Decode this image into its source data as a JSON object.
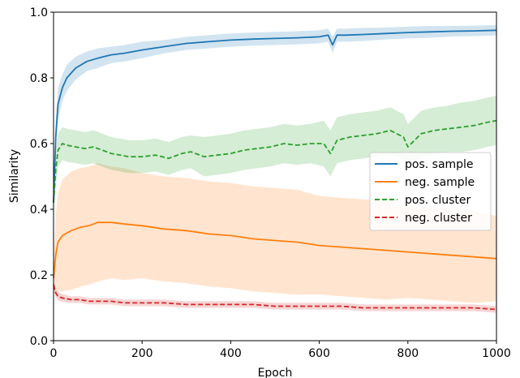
{
  "chart_data": {
    "type": "line",
    "title": "",
    "xlabel": "Epoch",
    "ylabel": "Similarity",
    "xlim": [
      0,
      1000
    ],
    "ylim": [
      0.0,
      1.0
    ],
    "x_ticks": [
      0,
      200,
      400,
      600,
      800,
      1000
    ],
    "x_tick_labels": [
      "0",
      "200",
      "400",
      "600",
      "800",
      "1000"
    ],
    "y_ticks": [
      0.0,
      0.2,
      0.4,
      0.6,
      0.8,
      1.0
    ],
    "y_tick_labels": [
      "0.0",
      "0.2",
      "0.4",
      "0.6",
      "0.8",
      "1.0"
    ],
    "grid": false,
    "legend_position": "center-right",
    "series": [
      {
        "name": "pos. sample",
        "color": "#1f77b4",
        "style": "solid",
        "x": [
          0,
          5,
          10,
          20,
          30,
          50,
          75,
          100,
          130,
          160,
          200,
          250,
          300,
          350,
          400,
          450,
          500,
          550,
          600,
          620,
          630,
          640,
          660,
          700,
          750,
          800,
          850,
          900,
          950,
          1000
        ],
        "y": [
          0.42,
          0.62,
          0.72,
          0.77,
          0.8,
          0.83,
          0.85,
          0.86,
          0.87,
          0.875,
          0.885,
          0.895,
          0.905,
          0.91,
          0.915,
          0.918,
          0.92,
          0.922,
          0.925,
          0.93,
          0.9,
          0.93,
          0.93,
          0.932,
          0.935,
          0.938,
          0.94,
          0.942,
          0.943,
          0.945
        ],
        "band": [
          0.02,
          0.05,
          0.05,
          0.04,
          0.04,
          0.035,
          0.03,
          0.03,
          0.025,
          0.025,
          0.025,
          0.02,
          0.02,
          0.02,
          0.02,
          0.02,
          0.02,
          0.02,
          0.02,
          0.02,
          0.025,
          0.02,
          0.02,
          0.02,
          0.018,
          0.018,
          0.018,
          0.016,
          0.016,
          0.016
        ]
      },
      {
        "name": "neg. sample",
        "color": "#ff7f0e",
        "style": "solid",
        "x": [
          0,
          5,
          10,
          20,
          40,
          60,
          80,
          100,
          130,
          160,
          200,
          250,
          300,
          350,
          400,
          450,
          500,
          550,
          600,
          650,
          700,
          750,
          800,
          850,
          900,
          950,
          1000
        ],
        "y": [
          0.19,
          0.26,
          0.3,
          0.32,
          0.335,
          0.345,
          0.35,
          0.36,
          0.36,
          0.355,
          0.35,
          0.34,
          0.335,
          0.325,
          0.32,
          0.31,
          0.305,
          0.3,
          0.29,
          0.285,
          0.28,
          0.275,
          0.27,
          0.265,
          0.26,
          0.255,
          0.25
        ],
        "band": [
          0.03,
          0.12,
          0.15,
          0.17,
          0.18,
          0.18,
          0.18,
          0.18,
          0.17,
          0.17,
          0.16,
          0.16,
          0.16,
          0.16,
          0.16,
          0.16,
          0.16,
          0.16,
          0.15,
          0.15,
          0.15,
          0.15,
          0.14,
          0.14,
          0.14,
          0.14,
          0.13
        ]
      },
      {
        "name": "pos. cluster",
        "color": "#2ca02c",
        "style": "dashed",
        "x": [
          0,
          5,
          10,
          20,
          30,
          50,
          70,
          90,
          110,
          130,
          150,
          170,
          200,
          230,
          260,
          290,
          310,
          340,
          370,
          400,
          430,
          460,
          490,
          520,
          550,
          580,
          610,
          625,
          640,
          670,
          700,
          730,
          760,
          790,
          800,
          830,
          860,
          890,
          920,
          950,
          980,
          1000
        ],
        "y": [
          0.42,
          0.52,
          0.58,
          0.6,
          0.595,
          0.59,
          0.585,
          0.59,
          0.58,
          0.57,
          0.565,
          0.56,
          0.56,
          0.565,
          0.555,
          0.57,
          0.575,
          0.56,
          0.565,
          0.57,
          0.58,
          0.585,
          0.59,
          0.6,
          0.595,
          0.6,
          0.6,
          0.57,
          0.61,
          0.62,
          0.625,
          0.63,
          0.64,
          0.62,
          0.59,
          0.63,
          0.64,
          0.645,
          0.65,
          0.655,
          0.665,
          0.67
        ],
        "band": [
          0.02,
          0.05,
          0.05,
          0.05,
          0.05,
          0.05,
          0.05,
          0.05,
          0.05,
          0.05,
          0.05,
          0.05,
          0.05,
          0.05,
          0.05,
          0.05,
          0.05,
          0.06,
          0.06,
          0.06,
          0.06,
          0.06,
          0.06,
          0.06,
          0.06,
          0.06,
          0.07,
          0.07,
          0.07,
          0.07,
          0.07,
          0.07,
          0.07,
          0.07,
          0.07,
          0.07,
          0.07,
          0.07,
          0.075,
          0.075,
          0.075,
          0.075
        ]
      },
      {
        "name": "neg. cluster",
        "color": "#d62728",
        "style": "dashed",
        "x": [
          0,
          5,
          10,
          20,
          40,
          60,
          80,
          100,
          130,
          160,
          200,
          250,
          300,
          350,
          400,
          450,
          500,
          550,
          600,
          650,
          700,
          750,
          800,
          850,
          900,
          950,
          1000
        ],
        "y": [
          0.17,
          0.145,
          0.135,
          0.13,
          0.125,
          0.125,
          0.12,
          0.12,
          0.12,
          0.115,
          0.115,
          0.115,
          0.11,
          0.11,
          0.11,
          0.11,
          0.105,
          0.105,
          0.105,
          0.105,
          0.1,
          0.1,
          0.1,
          0.1,
          0.1,
          0.1,
          0.095
        ],
        "band": [
          0.01,
          0.012,
          0.012,
          0.012,
          0.01,
          0.01,
          0.01,
          0.01,
          0.01,
          0.01,
          0.01,
          0.01,
          0.01,
          0.01,
          0.01,
          0.01,
          0.01,
          0.01,
          0.01,
          0.01,
          0.01,
          0.01,
          0.01,
          0.01,
          0.01,
          0.01,
          0.01
        ]
      }
    ]
  }
}
